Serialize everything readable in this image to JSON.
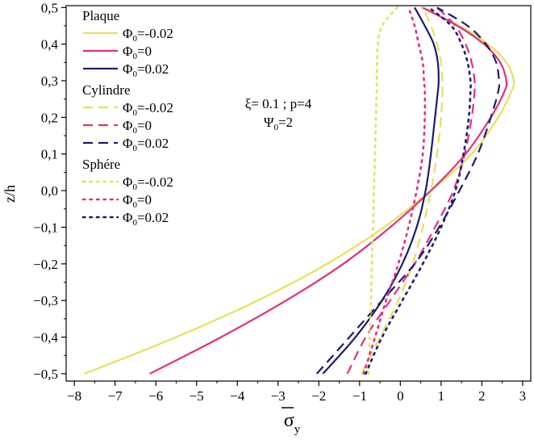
{
  "chart_data": {
    "type": "line",
    "title": "",
    "xlabel_main": "σ",
    "xlabel_sub": "y",
    "ylabel": "z/h",
    "xlim": [
      -8.2,
      3.2
    ],
    "ylim": [
      -0.52,
      0.505
    ],
    "xticks": [
      -8,
      -7,
      -6,
      -5,
      -4,
      -3,
      -2,
      -1,
      0,
      1,
      2,
      3
    ],
    "yticks": [
      -0.5,
      -0.4,
      -0.3,
      -0.2,
      -0.1,
      0.0,
      0.1,
      0.2,
      0.3,
      0.4,
      0.5
    ],
    "xtick_labels": [
      "−8",
      "−7",
      "−6",
      "−5",
      "−4",
      "−3",
      "−2",
      "−1",
      "0",
      "1",
      "2",
      "3"
    ],
    "ytick_labels": [
      "−0,5",
      "−0,4",
      "−0,3",
      "−0,2",
      "−0,1",
      "0,0",
      "0,1",
      "0,2",
      "0,3",
      "0,4",
      "0,5"
    ],
    "grid": false,
    "legend_position": "top-left",
    "annotation": {
      "line1": "ξ= 0.1 ; p=4",
      "line2_main": "Ψ",
      "line2_sub": "0",
      "line2_rest": "=2"
    },
    "groups": [
      {
        "title": "Plaque",
        "dash": "solid",
        "series": [
          {
            "symbol": "Φ",
            "sub": "0",
            "value": "=-0.02",
            "color": "#e6e15a",
            "x": [
              -7.75,
              -5.5,
              -3.5,
              -1.8,
              -0.4,
              0.75,
              1.75,
              2.4,
              2.72,
              2.78,
              2.6,
              2.15,
              1.45,
              0.5
            ],
            "y": [
              -0.5,
              -0.4,
              -0.3,
              -0.2,
              -0.1,
              0.0,
              0.1,
              0.2,
              0.27,
              0.3,
              0.35,
              0.4,
              0.45,
              0.5
            ]
          },
          {
            "symbol": "Φ",
            "sub": "0",
            "value": "=0",
            "color": "#e0307f",
            "x": [
              -6.15,
              -4.4,
              -2.8,
              -1.4,
              -0.25,
              0.75,
              1.6,
              2.22,
              2.55,
              2.6,
              2.45,
              2.05,
              1.4,
              0.55
            ],
            "y": [
              -0.5,
              -0.4,
              -0.3,
              -0.2,
              -0.1,
              0.0,
              0.1,
              0.2,
              0.27,
              0.3,
              0.35,
              0.4,
              0.45,
              0.5
            ]
          },
          {
            "symbol": "Φ",
            "sub": "0",
            "value": "=0.02",
            "color": "#1c1c6e",
            "x": [
              -1.9,
              -1.1,
              -0.45,
              0.05,
              0.4,
              0.62,
              0.75,
              0.85,
              0.92,
              0.94,
              0.92,
              0.82,
              0.6,
              0.35
            ],
            "y": [
              -0.5,
              -0.4,
              -0.3,
              -0.2,
              -0.1,
              0.0,
              0.1,
              0.2,
              0.27,
              0.3,
              0.35,
              0.4,
              0.45,
              0.5
            ]
          }
        ]
      },
      {
        "title": "Cylindre",
        "dash": "dash",
        "series": [
          {
            "symbol": "Φ",
            "sub": "0",
            "value": "=-0.02",
            "color": "#e6e15a",
            "x": [
              -0.95,
              -0.5,
              -0.05,
              0.3,
              0.55,
              0.75,
              0.9,
              1.0,
              1.03,
              1.03,
              1.0,
              0.9,
              0.75,
              0.55
            ],
            "y": [
              -0.5,
              -0.4,
              -0.3,
              -0.2,
              -0.1,
              0.0,
              0.1,
              0.2,
              0.27,
              0.3,
              0.35,
              0.4,
              0.45,
              0.5
            ]
          },
          {
            "symbol": "Φ",
            "sub": "0",
            "value": "=0",
            "color": "#e0307f",
            "x": [
              -1.3,
              -0.85,
              -0.25,
              0.35,
              0.85,
              1.3,
              1.58,
              1.75,
              1.82,
              1.82,
              1.75,
              1.6,
              1.35,
              0.9
            ],
            "y": [
              -0.5,
              -0.4,
              -0.3,
              -0.2,
              -0.1,
              0.0,
              0.1,
              0.2,
              0.27,
              0.3,
              0.35,
              0.4,
              0.45,
              0.5
            ]
          },
          {
            "symbol": "Φ",
            "sub": "0",
            "value": "=0.02",
            "color": "#1c1c6e",
            "x": [
              -2.05,
              -1.25,
              -0.45,
              0.35,
              0.95,
              1.45,
              1.9,
              2.22,
              2.4,
              2.42,
              2.35,
              2.1,
              1.65,
              0.9
            ],
            "y": [
              -0.5,
              -0.4,
              -0.3,
              -0.2,
              -0.1,
              0.0,
              0.1,
              0.2,
              0.27,
              0.3,
              0.35,
              0.4,
              0.45,
              0.5
            ]
          }
        ]
      },
      {
        "title": "Sphére",
        "dash": "dot",
        "series": [
          {
            "symbol": "Φ",
            "sub": "0",
            "value": "=-0.02",
            "color": "#e6e15a",
            "x": [
              -0.78,
              -0.75,
              -0.72,
              -0.7,
              -0.67,
              -0.65,
              -0.62,
              -0.6,
              -0.58,
              -0.58,
              -0.57,
              -0.55,
              -0.45,
              -0.08
            ],
            "y": [
              -0.5,
              -0.4,
              -0.3,
              -0.2,
              -0.1,
              0.0,
              0.1,
              0.2,
              0.27,
              0.3,
              0.35,
              0.4,
              0.45,
              0.5
            ]
          },
          {
            "symbol": "Φ",
            "sub": "0",
            "value": "=0",
            "color": "#e0307f",
            "x": [
              -0.9,
              -0.62,
              -0.35,
              -0.05,
              0.2,
              0.4,
              0.55,
              0.6,
              0.6,
              0.58,
              0.55,
              0.45,
              0.35,
              0.2
            ],
            "y": [
              -0.5,
              -0.4,
              -0.3,
              -0.2,
              -0.1,
              0.0,
              0.1,
              0.2,
              0.27,
              0.3,
              0.35,
              0.4,
              0.45,
              0.5
            ]
          },
          {
            "symbol": "Φ",
            "sub": "0",
            "value": "=0.02",
            "color": "#1c1c6e",
            "x": [
              -0.85,
              -0.45,
              0.05,
              0.55,
              1.0,
              1.35,
              1.55,
              1.68,
              1.72,
              1.72,
              1.65,
              1.5,
              1.25,
              0.7
            ],
            "y": [
              -0.5,
              -0.4,
              -0.3,
              -0.2,
              -0.1,
              0.0,
              0.1,
              0.2,
              0.27,
              0.3,
              0.35,
              0.4,
              0.45,
              0.5
            ]
          }
        ]
      }
    ]
  }
}
